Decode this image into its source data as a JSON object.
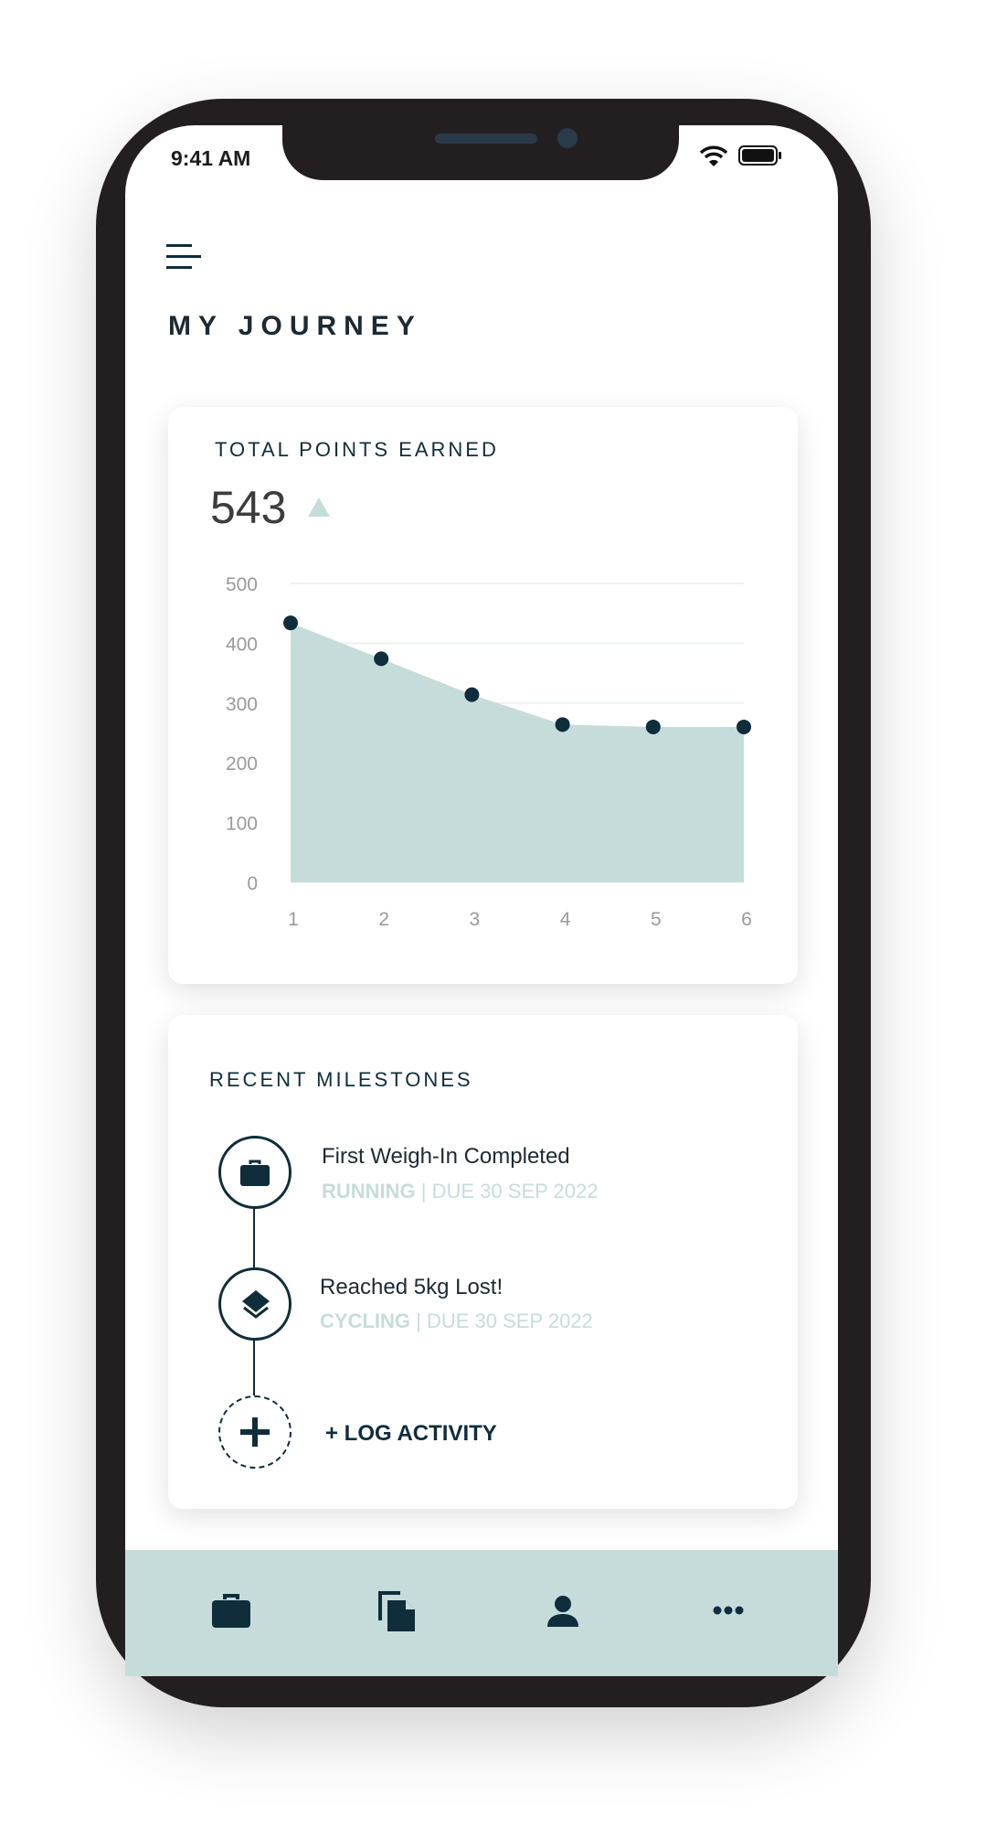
{
  "status_bar": {
    "time": "9:41 AM",
    "icons": [
      "wifi-icon",
      "battery-icon"
    ]
  },
  "header": {
    "menu_icon": "hamburger-menu-icon",
    "title": "MY JOURNEY"
  },
  "points_card": {
    "label": "TOTAL POINTS EARNED",
    "total": "543",
    "trend_icon": "triangle-up-icon"
  },
  "chart_data": {
    "type": "area",
    "x": [
      "1",
      "2",
      "3",
      "4",
      "5",
      "6"
    ],
    "values": [
      434,
      374,
      314,
      264,
      260,
      260
    ],
    "yticks": [
      "0",
      "100",
      "200",
      "300",
      "400",
      "500"
    ],
    "ylim": [
      0,
      500
    ],
    "grid": true,
    "colors": {
      "fill": "#c6dcdb",
      "point": "#0f2d3a"
    }
  },
  "milestones": {
    "title": "RECENT MILESTONES",
    "items": [
      {
        "icon": "briefcase-icon",
        "title": "First Weigh-In Completed",
        "category": "RUNNING",
        "due": "| DUE 30 SEP 2022"
      },
      {
        "icon": "layers-icon",
        "title": "Reached 5kg Lost!",
        "category": "CYCLING",
        "due": "| DUE 30 SEP 2022"
      }
    ],
    "log_label": "+ LOG ACTIVITY"
  },
  "bottom_nav": {
    "items": [
      {
        "icon": "briefcase-icon"
      },
      {
        "icon": "documents-icon"
      },
      {
        "icon": "user-icon"
      },
      {
        "icon": "more-icon"
      }
    ]
  },
  "colors": {
    "primary": "#0f2d3a",
    "accent": "#c6dcdb",
    "frame": "#231f20"
  }
}
